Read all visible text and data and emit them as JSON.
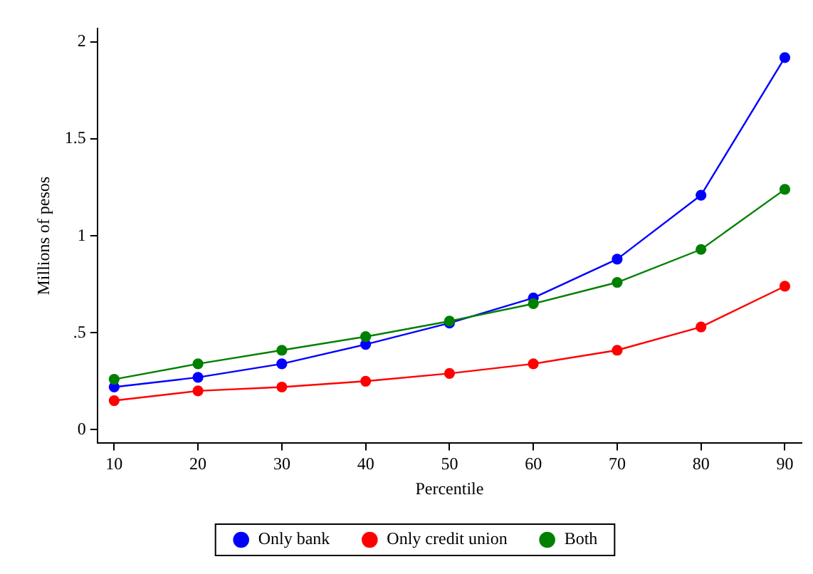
{
  "chart_data": {
    "type": "line",
    "xlabel": "Percentile",
    "ylabel": "Millions of pesos",
    "x": [
      10,
      20,
      30,
      40,
      50,
      60,
      70,
      80,
      90
    ],
    "xlim": [
      8,
      92
    ],
    "xticks": [
      10,
      20,
      30,
      40,
      50,
      60,
      70,
      80,
      90
    ],
    "ylim": [
      -0.07,
      2.07
    ],
    "yticks": [
      {
        "value": 0,
        "label": "0"
      },
      {
        "value": 0.5,
        "label": ".5"
      },
      {
        "value": 1,
        "label": "1"
      },
      {
        "value": 1.5,
        "label": "1.5"
      },
      {
        "value": 2,
        "label": "2"
      }
    ],
    "series": [
      {
        "name": "Only bank",
        "color": "#0000ff",
        "values": [
          0.22,
          0.27,
          0.34,
          0.44,
          0.55,
          0.68,
          0.88,
          1.21,
          1.92
        ]
      },
      {
        "name": "Only credit union",
        "color": "#ff0000",
        "values": [
          0.15,
          0.2,
          0.22,
          0.25,
          0.29,
          0.34,
          0.41,
          0.53,
          0.74
        ]
      },
      {
        "name": "Both",
        "color": "#008000",
        "values": [
          0.26,
          0.34,
          0.41,
          0.48,
          0.56,
          0.65,
          0.76,
          0.93,
          1.24
        ]
      }
    ],
    "marker": "circle",
    "line_style": "solid",
    "grid": false,
    "legend": "bottom"
  }
}
